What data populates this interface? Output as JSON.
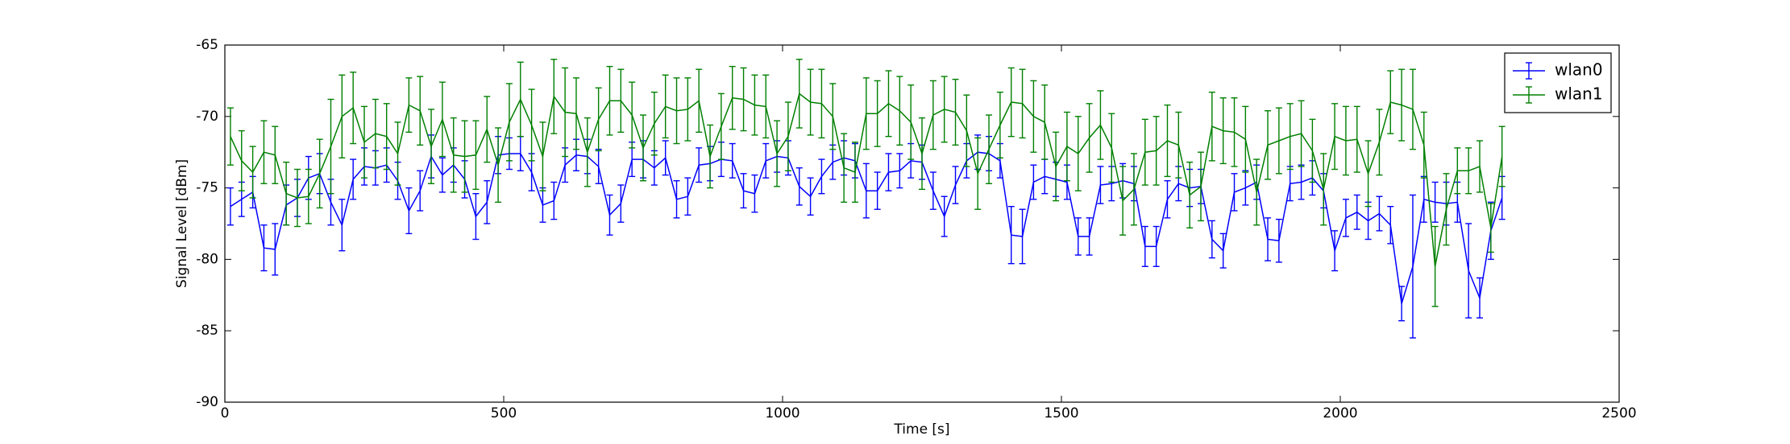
{
  "chart_data": {
    "type": "errorbar",
    "xlabel": "Time [s]",
    "ylabel": "Signal Level [dBm]",
    "x": [
      10,
      30,
      50,
      70,
      90,
      110,
      130,
      150,
      170,
      190,
      210,
      230,
      250,
      270,
      290,
      310,
      330,
      350,
      370,
      390,
      410,
      430,
      450,
      470,
      490,
      510,
      530,
      550,
      570,
      590,
      610,
      630,
      650,
      670,
      690,
      710,
      730,
      750,
      770,
      790,
      810,
      830,
      850,
      870,
      890,
      910,
      930,
      950,
      970,
      990,
      1010,
      1030,
      1050,
      1070,
      1090,
      1110,
      1130,
      1150,
      1170,
      1190,
      1210,
      1230,
      1250,
      1270,
      1290,
      1310,
      1330,
      1350,
      1370,
      1390,
      1410,
      1430,
      1450,
      1470,
      1490,
      1510,
      1530,
      1550,
      1570,
      1590,
      1610,
      1630,
      1650,
      1670,
      1690,
      1710,
      1730,
      1750,
      1770,
      1790,
      1810,
      1830,
      1850,
      1870,
      1890,
      1910,
      1930,
      1950,
      1970,
      1990,
      2010,
      2030,
      2050,
      2070,
      2090,
      2110,
      2130,
      2150,
      2170,
      2190,
      2210,
      2230,
      2250,
      2270,
      2290
    ],
    "series": [
      {
        "name": "wlan0",
        "color": "#0000ff",
        "values": [
          -76.3,
          -75.8,
          -75.3,
          -79.2,
          -79.3,
          -76.2,
          -75.7,
          -74.3,
          -74.0,
          -76.0,
          -77.6,
          -74.4,
          -73.5,
          -73.6,
          -73.4,
          -74.5,
          -76.6,
          -75.2,
          -72.8,
          -74.1,
          -73.4,
          -74.4,
          -77.0,
          -76.0,
          -72.7,
          -72.6,
          -72.6,
          -73.9,
          -76.2,
          -75.9,
          -73.4,
          -72.7,
          -72.8,
          -73.5,
          -76.9,
          -76.1,
          -73.0,
          -73.0,
          -73.6,
          -72.9,
          -75.8,
          -75.6,
          -73.4,
          -73.3,
          -73.0,
          -73.1,
          -75.2,
          -75.4,
          -73.1,
          -72.8,
          -72.9,
          -74.9,
          -75.6,
          -74.2,
          -73.2,
          -72.9,
          -73.1,
          -75.2,
          -75.2,
          -73.9,
          -73.8,
          -73.1,
          -73.2,
          -75.2,
          -77.0,
          -74.8,
          -73.1,
          -72.5,
          -72.6,
          -73.1,
          -78.3,
          -78.4,
          -74.6,
          -74.2,
          -74.4,
          -74.6,
          -78.4,
          -78.4,
          -74.8,
          -74.7,
          -74.5,
          -74.7,
          -79.1,
          -79.1,
          -75.8,
          -74.7,
          -75.0,
          -74.9,
          -78.6,
          -79.4,
          -75.3,
          -75.0,
          -74.6,
          -78.6,
          -78.7,
          -74.7,
          -74.6,
          -74.3,
          -75.2,
          -79.4,
          -77.1,
          -76.7,
          -77.3,
          -76.8,
          -77.6,
          -83.1,
          -80.5,
          -75.8,
          -76.0,
          -76.1,
          -76.0,
          -80.8,
          -82.7,
          -78.0,
          -75.7
        ],
        "errors": [
          1.3,
          1.2,
          1.1,
          1.6,
          1.8,
          1.4,
          1.3,
          1.5,
          1.4,
          1.6,
          1.8,
          1.4,
          1.3,
          1.2,
          1.2,
          1.3,
          1.6,
          1.4,
          1.5,
          1.2,
          1.2,
          1.3,
          1.6,
          1.5,
          1.3,
          1.1,
          1.2,
          1.3,
          1.2,
          1.3,
          1.2,
          1.1,
          1.2,
          1.2,
          1.4,
          1.3,
          1.2,
          1.3,
          1.2,
          1.2,
          1.3,
          1.3,
          1.2,
          1.2,
          1.2,
          1.2,
          1.2,
          1.3,
          1.2,
          1.1,
          1.2,
          1.3,
          1.3,
          1.2,
          1.2,
          1.2,
          1.2,
          1.9,
          1.3,
          1.3,
          1.2,
          1.2,
          1.2,
          1.3,
          1.4,
          1.3,
          1.2,
          1.2,
          1.2,
          1.2,
          2.0,
          1.9,
          1.2,
          1.2,
          1.2,
          1.2,
          1.3,
          1.3,
          1.3,
          1.2,
          1.2,
          1.2,
          1.4,
          1.4,
          1.3,
          1.2,
          1.3,
          1.2,
          1.3,
          1.2,
          1.3,
          1.2,
          1.2,
          1.5,
          1.5,
          1.2,
          1.2,
          1.2,
          1.2,
          1.4,
          1.3,
          1.2,
          1.3,
          1.2,
          1.3,
          1.2,
          5.0,
          1.6,
          1.4,
          1.5,
          1.4,
          3.3,
          1.4,
          2.0,
          1.5
        ]
      },
      {
        "name": "wlan1",
        "color": "#008000",
        "values": [
          -71.4,
          -73.1,
          -73.9,
          -72.5,
          -72.7,
          -75.4,
          -75.7,
          -75.6,
          -74.0,
          -72.1,
          -70.0,
          -69.4,
          -71.8,
          -71.2,
          -71.4,
          -72.6,
          -69.2,
          -69.6,
          -72.1,
          -70.2,
          -72.7,
          -72.8,
          -72.7,
          -70.9,
          -73.4,
          -70.4,
          -68.8,
          -70.6,
          -72.8,
          -68.6,
          -69.7,
          -69.8,
          -72.5,
          -70.2,
          -68.9,
          -68.9,
          -69.9,
          -72.2,
          -70.5,
          -69.3,
          -69.6,
          -69.5,
          -68.9,
          -72.8,
          -70.7,
          -68.7,
          -68.8,
          -69.2,
          -69.3,
          -72.6,
          -71.4,
          -68.4,
          -69.0,
          -69.1,
          -70.0,
          -73.6,
          -73.9,
          -69.8,
          -69.8,
          -69.1,
          -69.6,
          -70.4,
          -72.6,
          -69.9,
          -69.5,
          -69.7,
          -71.0,
          -74.0,
          -72.3,
          -70.6,
          -69.0,
          -69.1,
          -70.0,
          -70.4,
          -73.5,
          -72.1,
          -72.6,
          -71.5,
          -70.6,
          -72.2,
          -75.9,
          -75.1,
          -72.5,
          -72.4,
          -71.7,
          -72.0,
          -75.5,
          -74.9,
          -70.7,
          -71.0,
          -71.1,
          -71.6,
          -75.3,
          -72.0,
          -71.7,
          -71.4,
          -71.2,
          -72.4,
          -75.1,
          -71.4,
          -71.7,
          -71.6,
          -74.0,
          -71.8,
          -69.0,
          -69.2,
          -69.5,
          -72.0,
          -80.5,
          -76.5,
          -73.8,
          -73.8,
          -73.5,
          -77.8,
          -72.8
        ],
        "errors": [
          2.0,
          2.1,
          1.8,
          2.2,
          2.0,
          2.2,
          2.0,
          1.9,
          2.4,
          3.3,
          2.9,
          2.5,
          2.5,
          2.4,
          2.3,
          2.2,
          1.9,
          2.4,
          2.6,
          2.6,
          2.6,
          2.5,
          2.4,
          2.3,
          2.6,
          2.7,
          2.6,
          2.5,
          2.4,
          2.6,
          3.1,
          2.5,
          2.4,
          2.2,
          2.4,
          2.2,
          2.3,
          2.3,
          2.2,
          2.2,
          2.3,
          2.2,
          2.2,
          2.2,
          2.3,
          2.2,
          2.2,
          2.1,
          2.2,
          2.3,
          2.4,
          2.4,
          2.3,
          2.4,
          2.3,
          2.4,
          2.1,
          2.5,
          2.3,
          2.3,
          2.4,
          2.6,
          2.5,
          2.4,
          2.3,
          2.3,
          2.5,
          2.5,
          2.4,
          2.3,
          2.4,
          2.4,
          2.5,
          2.6,
          2.4,
          2.4,
          2.6,
          2.4,
          2.4,
          2.4,
          2.4,
          2.5,
          2.3,
          2.4,
          2.5,
          2.3,
          2.3,
          2.4,
          2.4,
          2.3,
          2.4,
          2.3,
          2.3,
          2.4,
          2.3,
          2.3,
          2.3,
          2.2,
          2.5,
          2.3,
          2.4,
          2.3,
          2.3,
          2.3,
          2.2,
          2.5,
          2.8,
          2.3,
          2.8,
          2.5,
          1.6,
          1.6,
          1.8,
          1.7,
          2.1
        ]
      }
    ],
    "xlim": [
      0,
      2500
    ],
    "xticks": [
      0,
      500,
      1000,
      1500,
      2000,
      2500
    ],
    "ylim": [
      -90,
      -65
    ],
    "yticks": [
      -90,
      -85,
      -80,
      -75,
      -70,
      -65
    ],
    "legend": "upper right"
  }
}
